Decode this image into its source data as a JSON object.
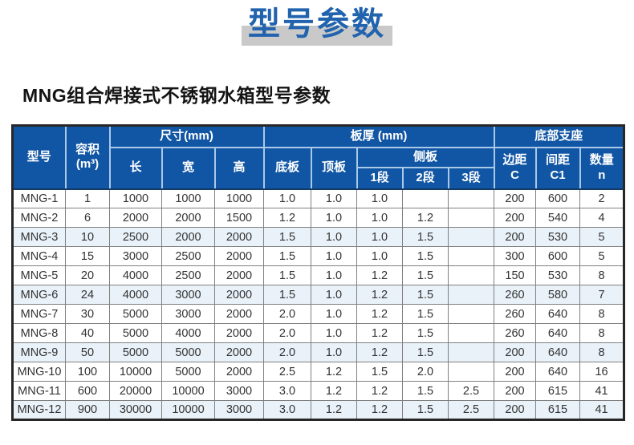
{
  "page": {
    "banner_title": "型号参数",
    "section_title": "MNG组合焊接式不锈钢水箱型号参数"
  },
  "colors": {
    "header_blue": "#1156a4",
    "title_blue": "#2263ae",
    "highlight_gray": "#c9c9c9",
    "row_tint_blue": "#e9f2f9"
  },
  "table": {
    "header": {
      "model": "型号",
      "capacity": [
        "容积",
        "(m³)"
      ],
      "size_group": "尺寸(mm)",
      "length": "长",
      "width": "宽",
      "height": "高",
      "thickness_group": "板厚 (mm)",
      "bottom_plate": "底板",
      "top_plate": "顶板",
      "side_plate": "侧板",
      "segment1": "1段",
      "segment2": "2段",
      "segment3": "3段",
      "support_group": "底部支座",
      "edge_distance": [
        "边距",
        "C"
      ],
      "spacing": [
        "间距",
        "C1"
      ],
      "quantity": [
        "数量",
        "n"
      ]
    },
    "rows": [
      {
        "model": "MNG-1",
        "capacity": "1",
        "length": "1000",
        "width": "1000",
        "height": "1000",
        "bottom_plate": "1.0",
        "top_plate": "1.0",
        "segment1": "1.0",
        "segment2": "",
        "segment3": "",
        "edge_c": "200",
        "spacing_c1": "600",
        "quantity_n": "2"
      },
      {
        "model": "MNG-2",
        "capacity": "6",
        "length": "2000",
        "width": "2000",
        "height": "1500",
        "bottom_plate": "1.2",
        "top_plate": "1.0",
        "segment1": "1.0",
        "segment2": "1.2",
        "segment3": "",
        "edge_c": "200",
        "spacing_c1": "540",
        "quantity_n": "4"
      },
      {
        "model": "MNG-3",
        "capacity": "10",
        "length": "2500",
        "width": "2000",
        "height": "2000",
        "bottom_plate": "1.5",
        "top_plate": "1.0",
        "segment1": "1.0",
        "segment2": "1.5",
        "segment3": "",
        "edge_c": "200",
        "spacing_c1": "530",
        "quantity_n": "5"
      },
      {
        "model": "MNG-4",
        "capacity": "15",
        "length": "3000",
        "width": "2500",
        "height": "2000",
        "bottom_plate": "1.5",
        "top_plate": "1.0",
        "segment1": "1.0",
        "segment2": "1.5",
        "segment3": "",
        "edge_c": "300",
        "spacing_c1": "600",
        "quantity_n": "5"
      },
      {
        "model": "MNG-5",
        "capacity": "20",
        "length": "4000",
        "width": "2500",
        "height": "2000",
        "bottom_plate": "1.5",
        "top_plate": "1.0",
        "segment1": "1.2",
        "segment2": "1.5",
        "segment3": "",
        "edge_c": "150",
        "spacing_c1": "530",
        "quantity_n": "8"
      },
      {
        "model": "MNG-6",
        "capacity": "24",
        "length": "4000",
        "width": "3000",
        "height": "2000",
        "bottom_plate": "1.5",
        "top_plate": "1.0",
        "segment1": "1.2",
        "segment2": "1.5",
        "segment3": "",
        "edge_c": "260",
        "spacing_c1": "580",
        "quantity_n": "7"
      },
      {
        "model": "MNG-7",
        "capacity": "30",
        "length": "5000",
        "width": "3000",
        "height": "2000",
        "bottom_plate": "2.0",
        "top_plate": "1.0",
        "segment1": "1.2",
        "segment2": "1.5",
        "segment3": "",
        "edge_c": "260",
        "spacing_c1": "640",
        "quantity_n": "8"
      },
      {
        "model": "MNG-8",
        "capacity": "40",
        "length": "5000",
        "width": "4000",
        "height": "2000",
        "bottom_plate": "2.0",
        "top_plate": "1.0",
        "segment1": "1.2",
        "segment2": "1.5",
        "segment3": "",
        "edge_c": "260",
        "spacing_c1": "640",
        "quantity_n": "8"
      },
      {
        "model": "MNG-9",
        "capacity": "50",
        "length": "5000",
        "width": "5000",
        "height": "2000",
        "bottom_plate": "2.0",
        "top_plate": "1.0",
        "segment1": "1.2",
        "segment2": "1.5",
        "segment3": "",
        "edge_c": "200",
        "spacing_c1": "640",
        "quantity_n": "8"
      },
      {
        "model": "MNG-10",
        "capacity": "100",
        "length": "10000",
        "width": "5000",
        "height": "2000",
        "bottom_plate": "2.5",
        "top_plate": "1.2",
        "segment1": "1.5",
        "segment2": "2.0",
        "segment3": "",
        "edge_c": "200",
        "spacing_c1": "640",
        "quantity_n": "16"
      },
      {
        "model": "MNG-11",
        "capacity": "600",
        "length": "20000",
        "width": "10000",
        "height": "3000",
        "bottom_plate": "3.0",
        "top_plate": "1.2",
        "segment1": "1.2",
        "segment2": "1.5",
        "segment3": "2.5",
        "edge_c": "200",
        "spacing_c1": "615",
        "quantity_n": "41"
      },
      {
        "model": "MNG-12",
        "capacity": "900",
        "length": "30000",
        "width": "10000",
        "height": "3000",
        "bottom_plate": "3.0",
        "top_plate": "1.2",
        "segment1": "1.2",
        "segment2": "1.5",
        "segment3": "2.5",
        "edge_c": "200",
        "spacing_c1": "615",
        "quantity_n": "41"
      }
    ]
  }
}
